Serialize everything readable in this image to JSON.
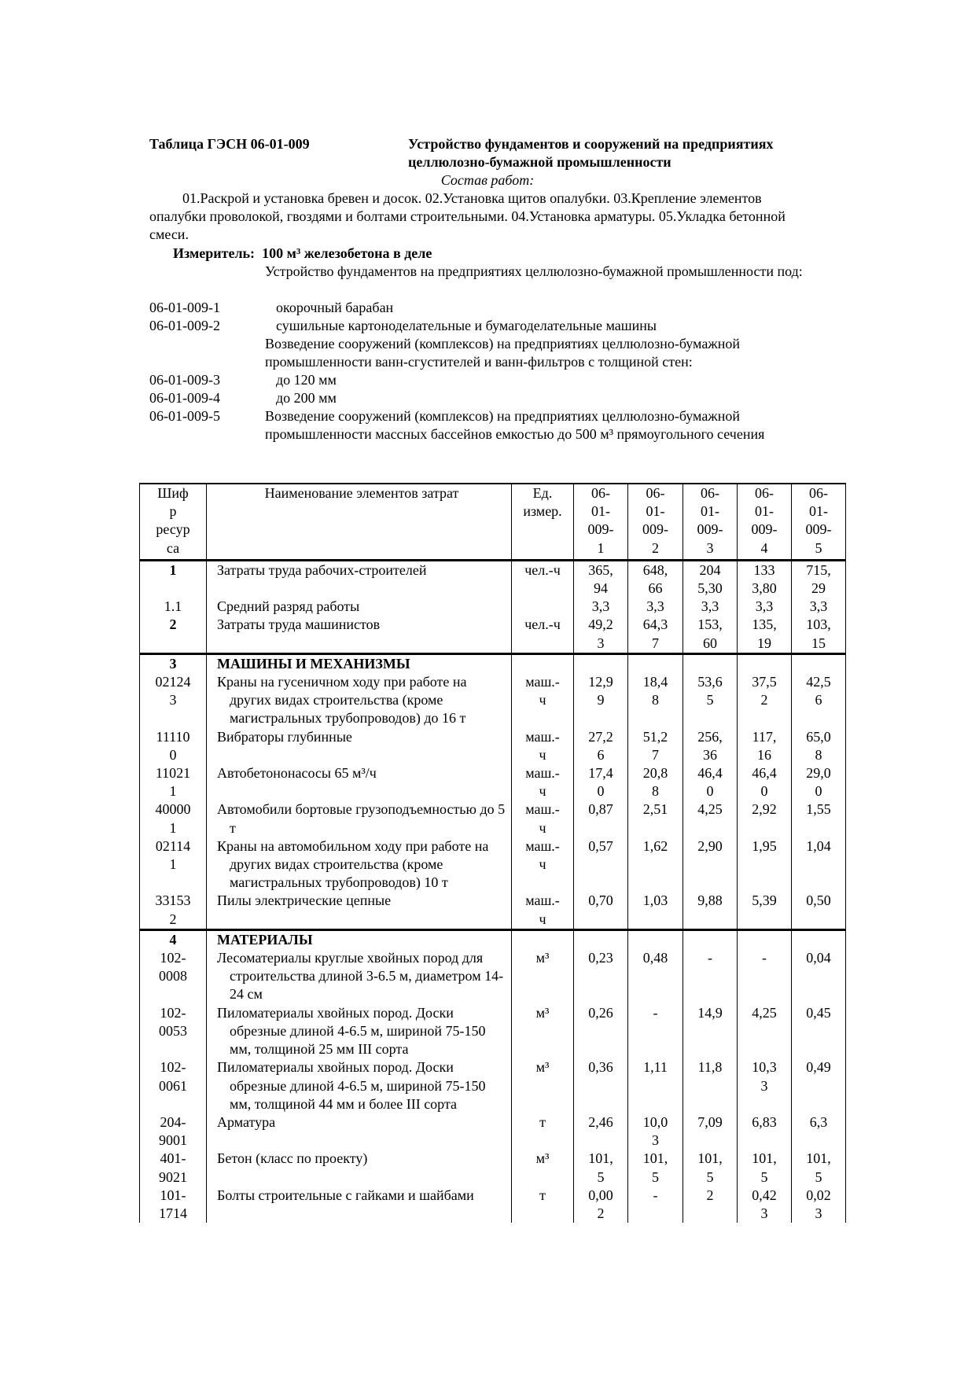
{
  "header": {
    "table_id": "Таблица ГЭСН 06-01-009",
    "title": "Устройство фундаментов и сооружений на предприятиях целлюлозно-бумажной промышленности"
  },
  "work_composition": {
    "heading": "Состав работ:",
    "text": "01.Раскрой и установка бревен и досок. 02.Установка щитов опалубки. 03.Крепление элементов опалубки проволокой, гвоздями и болтами строительными. 04.Установка арматуры. 05.Укладка бетонной смеси."
  },
  "measure": {
    "label": "Измеритель:",
    "value": "100 м³ железобетона в деле"
  },
  "entries": [
    {
      "code": "",
      "desc": "Устройство фундаментов на предприятиях целлюлозно-бумажной промышленности под:",
      "sub": false
    },
    {
      "code": "06-01-009-1",
      "desc": "окорочный барабан",
      "sub": true
    },
    {
      "code": "06-01-009-2",
      "desc": "сушильные картоноделательные и бумагоделательные машины",
      "sub": true
    },
    {
      "code": "",
      "desc": "Возведение сооружений (комплексов) на предприятиях целлюлозно-бумажной промышленности ванн-сгустителей и ванн-фильтров с толщиной стен:",
      "sub": false
    },
    {
      "code": "06-01-009-3",
      "desc": "до 120 мм",
      "sub": true
    },
    {
      "code": "06-01-009-4",
      "desc": "до 200 мм",
      "sub": true
    },
    {
      "code": "06-01-009-5",
      "desc": "Возведение сооружений (комплексов) на предприятиях целлюлозно-бумажной промышленности массных бассейнов емкостью до 500 м³ прямоугольного сечения",
      "sub": false
    }
  ],
  "table": {
    "columns": [
      "Шифр ресурса",
      "Наименование элементов затрат",
      "Ед. измер.",
      "06-01-009-1",
      "06-01-009-2",
      "06-01-009-3",
      "06-01-009-4",
      "06-01-009-5"
    ],
    "rows": [
      {
        "code": "1",
        "name": "Затраты труда рабочих-строителей",
        "unit": "чел.-ч",
        "values": [
          "365,94",
          "648,66",
          "2045,30",
          "1333,80",
          "715,29"
        ],
        "bold_code": true,
        "section_start": true
      },
      {
        "code": "1.1",
        "name": "Средний разряд работы",
        "unit": "",
        "values": [
          "3,3",
          "3,3",
          "3,3",
          "3,3",
          "3,3"
        ]
      },
      {
        "code": "2",
        "name": "Затраты труда машинистов",
        "unit": "чел.-ч",
        "values": [
          "49,23",
          "64,37",
          "153,60",
          "135,19",
          "103,15"
        ],
        "bold_code": true
      },
      {
        "code": "3",
        "name": "МАШИНЫ И МЕХАНИЗМЫ",
        "unit": "",
        "values": [
          "",
          "",
          "",
          "",
          ""
        ],
        "bold_code": true,
        "bold_name": true,
        "section_start": true
      },
      {
        "code": "021243",
        "name": "Краны на гусеничном ходу при работе на других видах строительства (кроме магистральных трубопроводов) до 16 т",
        "unit": "маш.-ч",
        "values": [
          "12,99",
          "18,48",
          "53,65",
          "37,52",
          "42,56"
        ]
      },
      {
        "code": "111100",
        "name": "Вибраторы глубинные",
        "unit": "маш.-ч",
        "values": [
          "27,26",
          "51,27",
          "256,36",
          "117,16",
          "65,08"
        ]
      },
      {
        "code": "110211",
        "name": "Автобетононасосы 65 м³/ч",
        "unit": "маш.-ч",
        "values": [
          "17,40",
          "20,88",
          "46,40",
          "46,40",
          "29,00"
        ]
      },
      {
        "code": "400001",
        "name": "Автомобили бортовые грузоподъемностью до 5 т",
        "unit": "маш.-ч",
        "values": [
          "0,87",
          "2,51",
          "4,25",
          "2,92",
          "1,55"
        ]
      },
      {
        "code": "021141",
        "name": "Краны на автомобильном ходу при работе на других видах строительства (кроме магистральных трубопроводов) 10 т",
        "unit": "маш.-ч",
        "values": [
          "0,57",
          "1,62",
          "2,90",
          "1,95",
          "1,04"
        ]
      },
      {
        "code": "331532",
        "name": "Пилы электрические цепные",
        "unit": "маш.-ч",
        "values": [
          "0,70",
          "1,03",
          "9,88",
          "5,39",
          "0,50"
        ]
      },
      {
        "code": "4",
        "name": "МАТЕРИАЛЫ",
        "unit": "",
        "values": [
          "",
          "",
          "",
          "",
          ""
        ],
        "bold_code": true,
        "bold_name": true,
        "section_start": true
      },
      {
        "code": "102-0008",
        "name": "Лесоматериалы круглые хвойных пород для строительства длиной 3-6.5 м, диаметром 14-24 см",
        "unit": "м³",
        "values": [
          "0,23",
          "0,48",
          "-",
          "-",
          "0,04"
        ]
      },
      {
        "code": "102-0053",
        "name": "Пиломатериалы хвойных пород. Доски обрезные длиной 4-6.5 м, шириной 75-150 мм, толщиной 25 мм III сорта",
        "unit": "м³",
        "values": [
          "0,26",
          "-",
          "14,9",
          "4,25",
          "0,45"
        ]
      },
      {
        "code": "102-0061",
        "name": "Пиломатериалы хвойных пород. Доски обрезные длиной 4-6.5 м, шириной 75-150 мм, толщиной 44 мм и более III сорта",
        "unit": "м³",
        "values": [
          "0,36",
          "1,11",
          "11,8",
          "10,33",
          "0,49"
        ]
      },
      {
        "code": "204-9001",
        "name": "Арматура",
        "unit": "т",
        "values": [
          "2,46",
          "10,03",
          "7,09",
          "6,83",
          "6,3"
        ]
      },
      {
        "code": "401-9021",
        "name": "Бетон (класс по проекту)",
        "unit": "м³",
        "values": [
          "101,5",
          "101,5",
          "101,5",
          "101,5",
          "101,5"
        ]
      },
      {
        "code": "101-1714",
        "name": "Болты строительные с гайками и шайбами",
        "unit": "т",
        "values": [
          "0,002",
          "-",
          "2",
          "0,423",
          "0,023"
        ]
      }
    ]
  }
}
